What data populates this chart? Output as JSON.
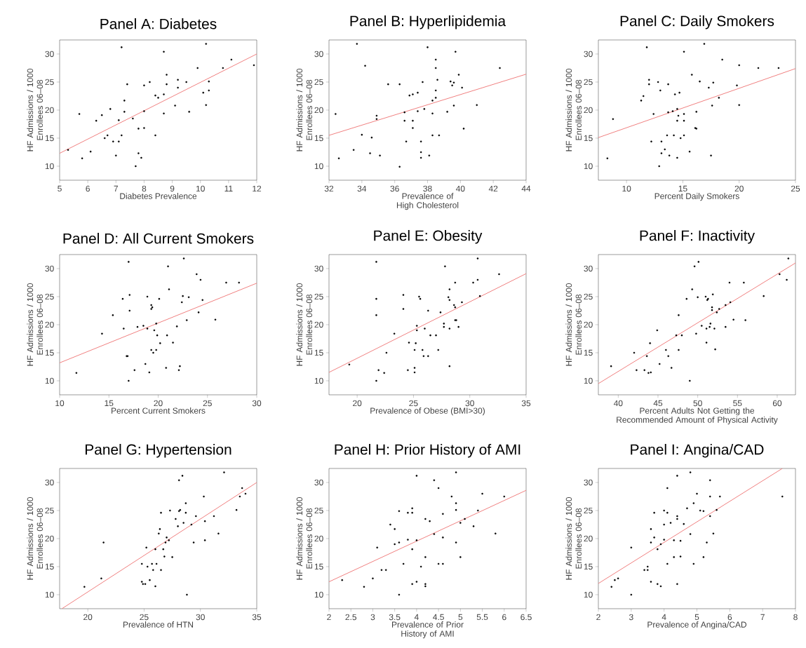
{
  "chart_data": [
    {
      "type": "scatter",
      "title": "Panel A: Diabetes",
      "xlabel": "Diabetes Prevalence",
      "ylabel": "HF Admissions / 1000 Enrollees 06–08",
      "xlim": [
        5,
        12
      ],
      "xticks": [
        5,
        6,
        7,
        8,
        9,
        10,
        11,
        12
      ],
      "ylim": [
        7.5,
        32.5
      ],
      "yticks": [
        10,
        15,
        20,
        25,
        30
      ],
      "series": [
        {
          "color": "#000000",
          "marker": "circle",
          "x": [
            5.3,
            5.7,
            5.8,
            6.1,
            6.3,
            6.5,
            6.6,
            6.7,
            6.8,
            6.9,
            7.0,
            7.1,
            7.1,
            7.2,
            7.2,
            7.3,
            7.3,
            7.4,
            7.6,
            7.7,
            7.8,
            7.8,
            7.9,
            8.0,
            8.0,
            8.0,
            8.2,
            8.4,
            8.4,
            8.5,
            8.7,
            8.7,
            8.7,
            8.8,
            8.8,
            9.1,
            9.2,
            9.2,
            9.5,
            9.6,
            9.9,
            10.1,
            10.2,
            10.2,
            10.3,
            10.3,
            10.8,
            11.1,
            11.9
          ],
          "values": [
            12.9,
            19.3,
            11.4,
            12.6,
            18.1,
            19.1,
            15.0,
            15.5,
            20.2,
            14.4,
            11.9,
            14.4,
            18.2,
            15.5,
            31.2,
            21.7,
            19.7,
            24.6,
            18.5,
            10.0,
            12.3,
            16.7,
            11.5,
            16.8,
            19.8,
            24.4,
            25.0,
            22.6,
            15.5,
            22.2,
            30.4,
            22.8,
            19.4,
            26.3,
            24.6,
            20.8,
            25.4,
            24.0,
            25.0,
            19.7,
            27.5,
            23.1,
            31.8,
            20.9,
            25.1,
            23.5,
            27.5,
            29.0,
            28.0
          ]
        },
        {
          "type": "line",
          "color": "#f08080",
          "x": [
            5,
            12
          ],
          "values": [
            12.3,
            30.0
          ]
        }
      ]
    },
    {
      "type": "scatter",
      "title": "Panel B: Hyperlipidemia",
      "xlabel": "Prevalence of High Cholesterol",
      "ylabel": "HF Admissions / 1000 Enrollees 06–08",
      "xlim": [
        32,
        44
      ],
      "xticks": [
        32,
        34,
        36,
        38,
        40,
        42,
        44
      ],
      "ylim": [
        7.5,
        32.5
      ],
      "yticks": [
        10,
        15,
        20,
        25,
        30
      ],
      "series": [
        {
          "color": "#000000",
          "marker": "circle",
          "x": [
            32.4,
            32.6,
            33.5,
            33.7,
            34.0,
            34.2,
            34.5,
            34.6,
            34.9,
            34.9,
            35.1,
            35.6,
            36.3,
            36.3,
            36.6,
            36.6,
            36.7,
            36.9,
            37.1,
            37.1,
            37.1,
            37.4,
            37.4,
            37.6,
            37.6,
            37.6,
            37.7,
            37.8,
            38.0,
            38.1,
            38.3,
            38.3,
            38.3,
            38.5,
            38.5,
            38.5,
            38.5,
            38.6,
            38.7,
            39.2,
            39.4,
            39.5,
            39.6,
            39.6,
            39.7,
            39.9,
            40.1,
            40.2,
            41.0,
            42.4
          ],
          "values": [
            19.3,
            11.4,
            12.9,
            31.8,
            15.6,
            27.9,
            12.3,
            15.1,
            19.0,
            18.4,
            11.9,
            24.6,
            24.6,
            9.9,
            19.6,
            18.1,
            14.4,
            22.6,
            22.8,
            18.1,
            16.8,
            23.1,
            19.8,
            14.4,
            12.5,
            11.5,
            25.0,
            20.2,
            31.2,
            11.9,
            21.7,
            19.4,
            15.5,
            29.0,
            27.5,
            23.5,
            22.2,
            25.4,
            15.5,
            19.7,
            25.1,
            24.4,
            24.9,
            20.8,
            30.4,
            26.3,
            24.0,
            16.7,
            20.9,
            27.5
          ]
        },
        {
          "type": "line",
          "color": "#f08080",
          "x": [
            32,
            44
          ],
          "values": [
            15.5,
            26.4
          ]
        }
      ]
    },
    {
      "type": "scatter",
      "title": "Panel C: Daily Smokers",
      "xlabel": "Percent Daily Smokers",
      "ylabel": "HF Admissions / 1000 Enrollees 06–08",
      "xlim": [
        7.5,
        25
      ],
      "xticks": [
        10,
        15,
        20,
        25
      ],
      "ylim": [
        7.5,
        32.5
      ],
      "yticks": [
        10,
        15,
        20,
        25,
        30
      ],
      "series": [
        {
          "color": "#000000",
          "marker": "circle",
          "x": [
            8.3,
            8.8,
            11.3,
            11.5,
            11.8,
            12.0,
            12.0,
            12.2,
            12.4,
            12.8,
            12.9,
            13.0,
            13.1,
            13.1,
            13.4,
            13.6,
            13.7,
            13.7,
            13.8,
            14.1,
            14.2,
            14.3,
            14.5,
            14.5,
            14.5,
            14.6,
            14.7,
            14.8,
            15.1,
            15.1,
            15.1,
            15.1,
            15.6,
            15.8,
            16.1,
            16.2,
            16.2,
            16.5,
            16.9,
            17.3,
            17.5,
            17.6,
            17.7,
            18.2,
            18.5,
            19.8,
            20.0,
            20.0,
            21.7,
            23.5
          ],
          "values": [
            11.4,
            18.4,
            21.7,
            22.5,
            31.2,
            25.4,
            24.6,
            14.4,
            19.3,
            25.0,
            10.0,
            23.5,
            14.4,
            12.3,
            13.0,
            15.5,
            24.6,
            19.6,
            11.9,
            19.8,
            15.5,
            22.8,
            20.2,
            18.1,
            11.5,
            19.0,
            23.1,
            15.0,
            30.4,
            19.3,
            18.1,
            15.5,
            12.6,
            26.3,
            16.8,
            16.7,
            19.7,
            25.1,
            31.8,
            24.0,
            11.9,
            20.8,
            24.9,
            22.2,
            29.0,
            24.4,
            28.0,
            20.9,
            27.5,
            27.5
          ]
        },
        {
          "type": "line",
          "color": "#f08080",
          "x": [
            7.5,
            25
          ],
          "values": [
            15.1,
            27.4
          ]
        }
      ]
    },
    {
      "type": "scatter",
      "title": "Panel D: All Current Smokers",
      "xlabel": "Percent Current Smokers",
      "ylabel": "HF Admissions / 1000 Enrollees 06–08",
      "xlim": [
        10,
        30
      ],
      "xticks": [
        10,
        15,
        20,
        25,
        30
      ],
      "ylim": [
        7.5,
        32.5
      ],
      "yticks": [
        10,
        15,
        20,
        25,
        30
      ],
      "series": [
        {
          "color": "#000000",
          "marker": "circle",
          "x": [
            11.7,
            14.3,
            15.4,
            16.4,
            16.5,
            16.8,
            16.9,
            17.0,
            17.0,
            17.1,
            17.1,
            17.6,
            17.9,
            18.5,
            18.7,
            18.9,
            18.9,
            19.1,
            19.3,
            19.3,
            19.4,
            19.3,
            19.5,
            19.6,
            19.8,
            19.8,
            19.9,
            20.1,
            20.2,
            20.8,
            20.9,
            21.0,
            21.1,
            21.5,
            21.9,
            22.1,
            22.2,
            22.4,
            22.5,
            22.6,
            22.9,
            23.1,
            23.9,
            24.1,
            24.3,
            24.5,
            25.8,
            26.9,
            28.2
          ],
          "values": [
            11.4,
            18.4,
            21.7,
            24.6,
            19.3,
            14.4,
            14.4,
            31.2,
            10.0,
            25.3,
            22.5,
            11.9,
            19.6,
            19.8,
            13.0,
            25.0,
            19.3,
            11.5,
            23.5,
            22.8,
            23.1,
            15.5,
            15.0,
            19.0,
            15.5,
            20.2,
            18.1,
            24.6,
            16.7,
            12.3,
            18.1,
            30.4,
            26.3,
            16.8,
            19.7,
            11.9,
            12.6,
            24.0,
            25.1,
            31.8,
            20.8,
            24.9,
            29.0,
            22.2,
            28.0,
            24.4,
            20.9,
            27.5,
            27.5
          ]
        },
        {
          "type": "line",
          "color": "#f08080",
          "x": [
            10,
            30
          ],
          "values": [
            13.2,
            27.4
          ]
        }
      ]
    },
    {
      "type": "scatter",
      "title": "Panel E: Obesity",
      "xlabel": "Prevalence of Obese (BMI>30)",
      "ylabel": "HF Admissions / 1000 Enrollees 06–08",
      "xlim": [
        17.5,
        35
      ],
      "xticks": [
        20,
        25,
        30,
        35
      ],
      "ylim": [
        7.5,
        32.5
      ],
      "yticks": [
        10,
        15,
        20,
        25,
        30
      ],
      "series": [
        {
          "color": "#000000",
          "marker": "circle",
          "x": [
            19.3,
            21.7,
            21.7,
            21.7,
            21.7,
            21.9,
            22.4,
            22.6,
            23.3,
            24.1,
            24.1,
            24.5,
            24.6,
            25.1,
            25.1,
            25.1,
            25.2,
            25.3,
            25.3,
            25.5,
            25.6,
            25.8,
            25.9,
            26.0,
            26.3,
            26.3,
            26.5,
            27.0,
            27.2,
            27.4,
            27.7,
            27.7,
            27.8,
            28.1,
            28.2,
            28.2,
            28.2,
            28.2,
            28.6,
            28.7,
            28.7,
            28.7,
            28.8,
            29.0,
            29.3,
            30.3,
            30.7,
            30.7,
            30.9,
            32.6
          ],
          "values": [
            12.9,
            31.2,
            24.6,
            21.7,
            10.0,
            11.9,
            11.4,
            15.0,
            18.4,
            25.3,
            22.8,
            11.9,
            16.8,
            15.5,
            12.3,
            11.5,
            16.7,
            19.8,
            19.0,
            25.0,
            24.6,
            15.5,
            14.4,
            19.3,
            22.5,
            14.4,
            18.1,
            18.1,
            15.5,
            22.2,
            20.2,
            19.6,
            30.4,
            24.9,
            26.3,
            24.4,
            19.3,
            12.6,
            23.5,
            27.5,
            23.1,
            20.8,
            20.8,
            19.6,
            24.0,
            27.5,
            31.8,
            28.0,
            25.1,
            29.0
          ]
        },
        {
          "type": "line",
          "color": "#f08080",
          "x": [
            17.5,
            35
          ],
          "values": [
            11.5,
            29.1
          ]
        }
      ]
    },
    {
      "type": "scatter",
      "title": "Panel F: Inactivity",
      "xlabel": "Percent Adults Not Getting the Recommended Amount of Physical Activity",
      "ylabel": "HF Admissions / 1000 Enrollees 06–08",
      "xlim": [
        37.5,
        62.3
      ],
      "xticks": [
        40,
        45,
        50,
        55,
        60
      ],
      "ylim": [
        7.5,
        32.5
      ],
      "yticks": [
        10,
        15,
        20,
        25,
        30
      ],
      "series": [
        {
          "color": "#000000",
          "marker": "circle",
          "x": [
            39.1,
            42.0,
            42.3,
            43.3,
            43.6,
            43.8,
            44.0,
            44.1,
            44.9,
            45.2,
            46.0,
            46.3,
            46.7,
            47.3,
            47.6,
            47.6,
            48.0,
            48.6,
            49.0,
            49.3,
            49.6,
            49.8,
            50.0,
            50.1,
            50.5,
            51.0,
            51.1,
            51.1,
            51.2,
            51.3,
            51.5,
            51.6,
            51.8,
            51.8,
            51.9,
            52.1,
            52.2,
            52.4,
            52.7,
            53.5,
            53.5,
            54.0,
            54.1,
            54.5,
            55.8,
            56.0,
            58.3,
            60.3,
            61.2,
            61.4
          ],
          "values": [
            12.6,
            15.0,
            11.9,
            11.9,
            14.4,
            11.4,
            16.7,
            11.5,
            19.0,
            13.0,
            15.5,
            14.4,
            12.3,
            18.1,
            21.7,
            15.5,
            18.1,
            24.6,
            10.0,
            26.3,
            30.4,
            18.4,
            24.9,
            31.2,
            19.8,
            25.0,
            19.3,
            16.8,
            24.4,
            24.6,
            19.6,
            20.2,
            23.1,
            22.6,
            25.4,
            19.3,
            15.6,
            22.2,
            22.8,
            23.5,
            19.6,
            27.5,
            24.0,
            20.9,
            27.5,
            20.8,
            25.1,
            29.0,
            28.0,
            31.8
          ]
        },
        {
          "type": "line",
          "color": "#f08080",
          "x": [
            37.5,
            62.3
          ],
          "values": [
            9.5,
            31.0
          ]
        }
      ]
    },
    {
      "type": "scatter",
      "title": "Panel G: Hypertension",
      "xlabel": "Prevalence of HTN",
      "ylabel": "HF Admissions / 1000 Enrollees 06–08",
      "xlim": [
        17.5,
        35
      ],
      "xticks": [
        20,
        25,
        30,
        35
      ],
      "ylim": [
        7.5,
        32.5
      ],
      "yticks": [
        10,
        15,
        20,
        25,
        30
      ],
      "series": [
        {
          "color": "#000000",
          "marker": "circle",
          "x": [
            19.7,
            21.2,
            21.4,
            24.8,
            24.8,
            24.9,
            25.1,
            25.2,
            25.3,
            25.5,
            25.7,
            25.8,
            26.0,
            26.0,
            26.1,
            26.3,
            26.4,
            26.5,
            26.5,
            26.7,
            26.8,
            26.9,
            27.0,
            27.2,
            27.3,
            27.5,
            27.8,
            28.0,
            28.1,
            28.1,
            28.2,
            28.4,
            28.5,
            28.7,
            28.7,
            28.8,
            29.2,
            29.4,
            29.6,
            30.3,
            30.4,
            30.4,
            31.2,
            31.6,
            32.1,
            33.2,
            33.5,
            33.7,
            34.0
          ],
          "values": [
            11.4,
            12.9,
            19.3,
            15.5,
            12.3,
            11.9,
            11.9,
            18.4,
            15.0,
            12.6,
            15.5,
            14.4,
            11.5,
            18.1,
            15.5,
            20.9,
            21.7,
            24.6,
            14.4,
            18.1,
            16.8,
            19.3,
            20.2,
            19.7,
            25.0,
            16.7,
            23.5,
            22.2,
            30.4,
            24.9,
            25.1,
            31.2,
            22.8,
            26.3,
            24.6,
            10.0,
            22.5,
            19.3,
            24.0,
            27.5,
            23.1,
            19.7,
            24.0,
            20.9,
            31.8,
            25.1,
            27.5,
            29.0,
            28.0
          ]
        },
        {
          "type": "line",
          "color": "#f08080",
          "x": [
            17.7,
            35
          ],
          "values": [
            7.5,
            30.0
          ]
        }
      ]
    },
    {
      "type": "scatter",
      "title": "Panel H: Prior History of AMI",
      "xlabel": "Prevalence of Prior History of AMI",
      "ylabel": "HF Admissions / 1000 Enrollees 06–08",
      "xlim": [
        2,
        6.5
      ],
      "xticks": [
        2,
        2.5,
        3,
        3.5,
        4,
        4.5,
        5,
        5.5,
        6,
        6.5
      ],
      "ylim": [
        7.5,
        32.5
      ],
      "yticks": [
        10,
        15,
        20,
        25,
        30
      ],
      "series": [
        {
          "color": "#000000",
          "marker": "circle",
          "x": [
            2.3,
            2.8,
            3.0,
            3.1,
            3.2,
            3.3,
            3.4,
            3.5,
            3.5,
            3.6,
            3.6,
            3.6,
            3.7,
            3.8,
            3.8,
            3.9,
            3.9,
            3.9,
            3.9,
            4.0,
            4.0,
            4.0,
            4.1,
            4.2,
            4.2,
            4.2,
            4.2,
            4.3,
            4.4,
            4.4,
            4.5,
            4.5,
            4.6,
            4.6,
            4.6,
            4.8,
            4.9,
            4.9,
            4.9,
            4.9,
            5.0,
            5.0,
            5.1,
            5.3,
            5.4,
            5.5,
            5.8,
            6.0
          ],
          "values": [
            12.6,
            11.4,
            12.9,
            18.4,
            14.4,
            14.4,
            22.5,
            19.0,
            21.7,
            19.3,
            10.0,
            24.9,
            15.5,
            24.6,
            19.8,
            25.4,
            24.6,
            18.1,
            11.9,
            31.2,
            19.7,
            12.3,
            15.0,
            23.5,
            16.7,
            11.9,
            11.5,
            23.1,
            30.4,
            20.8,
            29.0,
            15.5,
            24.4,
            15.5,
            20.2,
            27.5,
            26.3,
            25.1,
            19.3,
            31.8,
            22.8,
            16.7,
            23.5,
            22.2,
            25.0,
            28.0,
            20.9,
            27.5
          ]
        },
        {
          "type": "line",
          "color": "#f08080",
          "x": [
            2,
            6.5
          ],
          "values": [
            12.3,
            28.6
          ]
        }
      ]
    },
    {
      "type": "scatter",
      "title": "Panel I: Angina/CAD",
      "xlabel": "Prevalence of Angina/CAD",
      "ylabel": "HF Admissions / 1000 Enrollees 06–08",
      "xlim": [
        2,
        8
      ],
      "xticks": [
        2,
        3,
        4,
        5,
        6,
        7,
        8
      ],
      "ylim": [
        7.5,
        32.5
      ],
      "yticks": [
        10,
        15,
        20,
        25,
        30
      ],
      "series": [
        {
          "color": "#000000",
          "marker": "circle",
          "x": [
            2.4,
            2.5,
            2.6,
            3.0,
            3.0,
            3.4,
            3.5,
            3.5,
            3.6,
            3.6,
            3.6,
            3.7,
            3.7,
            3.8,
            3.8,
            3.9,
            3.9,
            4.0,
            4.0,
            4.0,
            4.1,
            4.1,
            4.1,
            4.2,
            4.3,
            4.3,
            4.4,
            4.4,
            4.4,
            4.4,
            4.5,
            4.5,
            4.6,
            4.7,
            4.8,
            4.8,
            4.9,
            4.9,
            5.0,
            5.1,
            5.2,
            5.2,
            5.3,
            5.4,
            5.4,
            5.4,
            5.5,
            5.6,
            5.7,
            7.6
          ],
          "values": [
            11.4,
            12.6,
            12.9,
            10.0,
            18.4,
            14.4,
            15.0,
            14.4,
            19.3,
            12.3,
            21.7,
            24.6,
            20.2,
            18.1,
            11.9,
            11.5,
            19.0,
            19.8,
            22.5,
            25.0,
            29.0,
            24.6,
            15.5,
            22.8,
            19.7,
            16.7,
            31.2,
            24.0,
            23.5,
            11.9,
            19.6,
            16.8,
            22.6,
            25.4,
            20.8,
            31.8,
            26.3,
            15.5,
            28.0,
            25.0,
            24.9,
            16.7,
            19.3,
            30.4,
            27.5,
            24.0,
            20.9,
            25.1,
            27.5,
            27.5
          ]
        },
        {
          "type": "line",
          "color": "#f08080",
          "x": [
            2,
            7.6
          ],
          "values": [
            12.0,
            32.5
          ]
        }
      ]
    }
  ]
}
